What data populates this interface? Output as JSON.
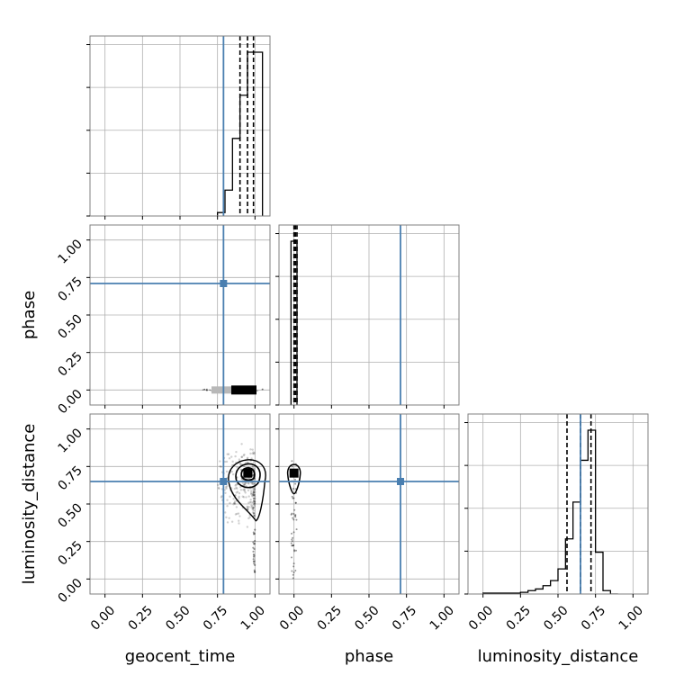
{
  "chart_data": {
    "type": "corner",
    "parameters": [
      "geocent_time",
      "phase",
      "luminosity_distance"
    ],
    "axis_ranges": {
      "geocent_time": [
        -0.1,
        1.1
      ],
      "phase": [
        -0.1,
        1.1
      ],
      "luminosity_distance": [
        -0.1,
        1.1
      ]
    },
    "tick_labels": [
      "0.00",
      "0.25",
      "0.50",
      "0.75",
      "1.00"
    ],
    "tick_values": [
      0,
      0.25,
      0.5,
      0.75,
      1.0
    ],
    "grid": true,
    "truths": {
      "geocent_time": 0.79,
      "phase": 0.71,
      "luminosity_distance": 0.65
    },
    "quantiles": {
      "geocent_time": [
        0.9,
        0.95,
        0.99
      ],
      "phase": [
        0.0,
        0.01,
        0.02
      ],
      "luminosity_distance": [
        0.56,
        0.65,
        0.72
      ]
    },
    "histograms": {
      "geocent_time": {
        "edges": [
          0.75,
          0.8,
          0.85,
          0.9,
          0.95,
          1.0,
          1.05
        ],
        "counts": [
          0.02,
          0.15,
          0.45,
          0.7,
          0.95,
          0.95
        ]
      },
      "phase": {
        "edges": [
          -0.02,
          0.02
        ],
        "counts": [
          1.0
        ]
      },
      "luminosity_distance": {
        "edges": [
          0.0,
          0.05,
          0.1,
          0.15,
          0.2,
          0.25,
          0.3,
          0.35,
          0.4,
          0.45,
          0.5,
          0.55,
          0.6,
          0.65,
          0.7,
          0.75,
          0.8,
          0.85,
          0.9
        ],
        "counts": [
          0.005,
          0.005,
          0.005,
          0.005,
          0.005,
          0.01,
          0.02,
          0.03,
          0.05,
          0.08,
          0.15,
          0.33,
          0.55,
          0.8,
          0.98,
          0.25,
          0.02,
          0.0
        ]
      }
    },
    "panels_2d": [
      {
        "row": "phase",
        "col": "geocent_time",
        "density_center": [
          0.95,
          0.0
        ],
        "contour_levels": 0
      },
      {
        "row": "luminosity_distance",
        "col": "geocent_time",
        "density_center": [
          0.97,
          0.7
        ],
        "contour_levels": 3
      },
      {
        "row": "luminosity_distance",
        "col": "phase",
        "density_center": [
          0.0,
          0.7
        ],
        "contour_levels": 2
      }
    ]
  }
}
